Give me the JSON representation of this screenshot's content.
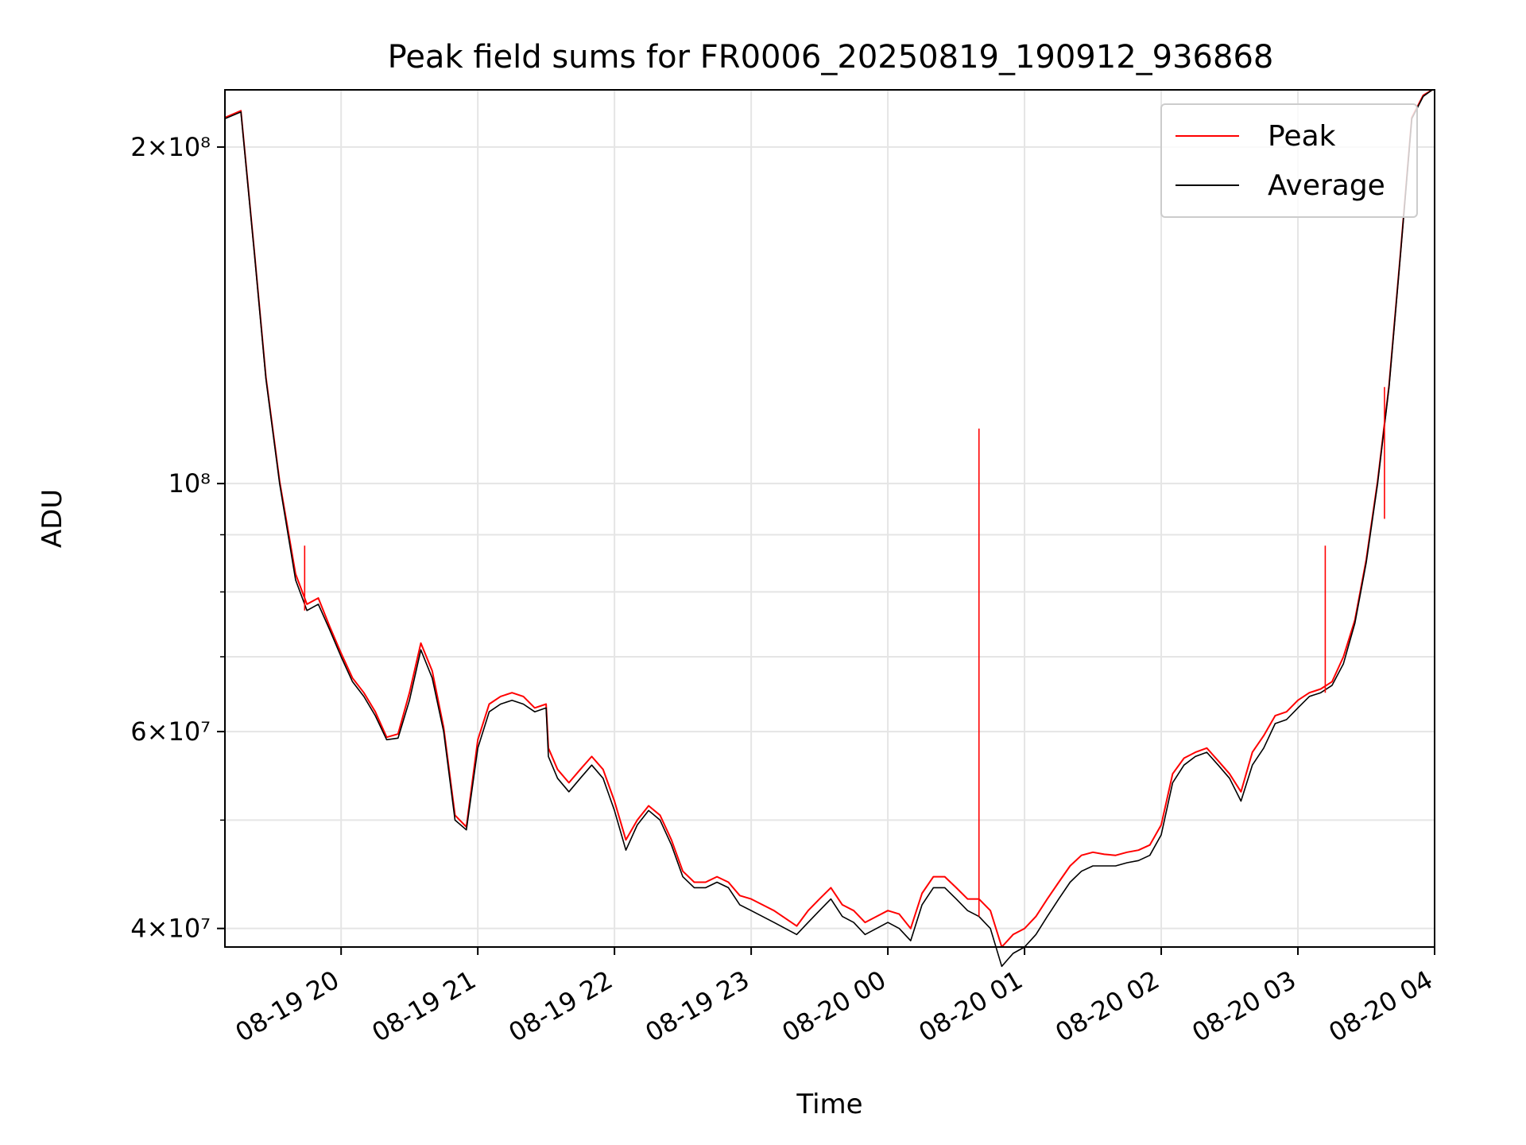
{
  "chart_data": {
    "type": "line",
    "title": "Peak field sums for FR0006_20250819_190912_936868",
    "xlabel": "Time",
    "ylabel": "ADU",
    "yscale": "log",
    "xlim": [
      "2025-08-19 19:09",
      "2025-08-20 04:00"
    ],
    "ylim": [
      38500000,
      225000000
    ],
    "x_ticks": [
      "08-19 20",
      "08-19 21",
      "08-19 22",
      "08-19 23",
      "08-20 00",
      "08-20 01",
      "08-20 02",
      "08-20 03",
      "08-20 04"
    ],
    "y_ticks": [
      {
        "value": 40000000,
        "label": "4×10⁷"
      },
      {
        "value": 60000000,
        "label": "6×10⁷"
      },
      {
        "value": 100000000,
        "label": "10⁸"
      },
      {
        "value": 200000000,
        "label": "2×10⁸"
      }
    ],
    "y_minor_ticks": [
      50000000,
      70000000,
      80000000,
      90000000
    ],
    "grid": true,
    "legend": {
      "position": "top-right",
      "entries": [
        "Peak",
        "Average"
      ]
    },
    "series": [
      {
        "name": "Average",
        "color": "#000000",
        "x": [
          "2025-08-19 19:09",
          "2025-08-19 19:16",
          "2025-08-19 19:22",
          "2025-08-19 19:27",
          "2025-08-19 19:33",
          "2025-08-19 19:40",
          "2025-08-19 19:45",
          "2025-08-19 19:50",
          "2025-08-19 19:55",
          "2025-08-19 20:00",
          "2025-08-19 20:05",
          "2025-08-19 20:10",
          "2025-08-19 20:15",
          "2025-08-19 20:20",
          "2025-08-19 20:25",
          "2025-08-19 20:30",
          "2025-08-19 20:35",
          "2025-08-19 20:40",
          "2025-08-19 20:45",
          "2025-08-19 20:50",
          "2025-08-19 20:55",
          "2025-08-19 21:00",
          "2025-08-19 21:05",
          "2025-08-19 21:10",
          "2025-08-19 21:15",
          "2025-08-19 21:20",
          "2025-08-19 21:25",
          "2025-08-19 21:30",
          "2025-08-19 21:31",
          "2025-08-19 21:35",
          "2025-08-19 21:40",
          "2025-08-19 21:45",
          "2025-08-19 21:50",
          "2025-08-19 21:55",
          "2025-08-19 22:00",
          "2025-08-19 22:05",
          "2025-08-19 22:10",
          "2025-08-19 22:15",
          "2025-08-19 22:20",
          "2025-08-19 22:25",
          "2025-08-19 22:30",
          "2025-08-19 22:35",
          "2025-08-19 22:40",
          "2025-08-19 22:45",
          "2025-08-19 22:50",
          "2025-08-19 22:55",
          "2025-08-19 23:00",
          "2025-08-19 23:10",
          "2025-08-19 23:20",
          "2025-08-19 23:25",
          "2025-08-19 23:30",
          "2025-08-19 23:35",
          "2025-08-19 23:40",
          "2025-08-19 23:45",
          "2025-08-19 23:50",
          "2025-08-19 23:55",
          "2025-08-20 00:00",
          "2025-08-20 00:05",
          "2025-08-20 00:10",
          "2025-08-20 00:15",
          "2025-08-20 00:20",
          "2025-08-20 00:25",
          "2025-08-20 00:30",
          "2025-08-20 00:35",
          "2025-08-20 00:40",
          "2025-08-20 00:45",
          "2025-08-20 00:50",
          "2025-08-20 00:55",
          "2025-08-20 01:00",
          "2025-08-20 01:05",
          "2025-08-20 01:10",
          "2025-08-20 01:15",
          "2025-08-20 01:20",
          "2025-08-20 01:25",
          "2025-08-20 01:30",
          "2025-08-20 01:35",
          "2025-08-20 01:40",
          "2025-08-20 01:45",
          "2025-08-20 01:50",
          "2025-08-20 01:55",
          "2025-08-20 02:00",
          "2025-08-20 02:05",
          "2025-08-20 02:10",
          "2025-08-20 02:15",
          "2025-08-20 02:20",
          "2025-08-20 02:25",
          "2025-08-20 02:30",
          "2025-08-20 02:35",
          "2025-08-20 02:40",
          "2025-08-20 02:45",
          "2025-08-20 02:50",
          "2025-08-20 02:55",
          "2025-08-20 03:00",
          "2025-08-20 03:05",
          "2025-08-20 03:10",
          "2025-08-20 03:15",
          "2025-08-20 03:20",
          "2025-08-20 03:25",
          "2025-08-20 03:30",
          "2025-08-20 03:35",
          "2025-08-20 03:40",
          "2025-08-20 03:45",
          "2025-08-20 03:50",
          "2025-08-20 03:55",
          "2025-08-20 03:59"
        ],
        "values": [
          212000000,
          215000000,
          160000000,
          124000000,
          100000000,
          82000000,
          77000000,
          78000000,
          74000000,
          70000000,
          66500000,
          64500000,
          62000000,
          59000000,
          59200000,
          64000000,
          71000000,
          67000000,
          60000000,
          50000000,
          49000000,
          58000000,
          62500000,
          63500000,
          64000000,
          63500000,
          62500000,
          63000000,
          57000000,
          54500000,
          53000000,
          54500000,
          56000000,
          54500000,
          51000000,
          47000000,
          49500000,
          51000000,
          50000000,
          47500000,
          44500000,
          43500000,
          43500000,
          44000000,
          43500000,
          42000000,
          41500000,
          40500000,
          39500000,
          40500000,
          41500000,
          42500000,
          41000000,
          40500000,
          39500000,
          40000000,
          40500000,
          40000000,
          39000000,
          42000000,
          43500000,
          43500000,
          42500000,
          41500000,
          41000000,
          40000000,
          37000000,
          38000000,
          38500000,
          39500000,
          41000000,
          42500000,
          44000000,
          45000000,
          45500000,
          45500000,
          45500000,
          45800000,
          46000000,
          46500000,
          48500000,
          54000000,
          56000000,
          57000000,
          57500000,
          56000000,
          54500000,
          52000000,
          56000000,
          58000000,
          61000000,
          61500000,
          63000000,
          64500000,
          65000000,
          66000000,
          69000000,
          75000000,
          85000000,
          100000000,
          122000000,
          160000000,
          212000000,
          222000000,
          225000000
        ]
      },
      {
        "name": "Peak",
        "color": "#ff0000",
        "x": [
          "2025-08-19 19:09",
          "2025-08-19 19:16",
          "2025-08-19 19:22",
          "2025-08-19 19:27",
          "2025-08-19 19:33",
          "2025-08-19 19:40",
          "2025-08-19 19:45",
          "2025-08-19 19:50",
          "2025-08-19 19:55",
          "2025-08-19 20:00",
          "2025-08-19 20:05",
          "2025-08-19 20:10",
          "2025-08-19 20:15",
          "2025-08-19 20:20",
          "2025-08-19 20:25",
          "2025-08-19 20:30",
          "2025-08-19 20:35",
          "2025-08-19 20:40",
          "2025-08-19 20:45",
          "2025-08-19 20:50",
          "2025-08-19 20:55",
          "2025-08-19 21:00",
          "2025-08-19 21:05",
          "2025-08-19 21:10",
          "2025-08-19 21:15",
          "2025-08-19 21:20",
          "2025-08-19 21:25",
          "2025-08-19 21:30",
          "2025-08-19 21:31",
          "2025-08-19 21:35",
          "2025-08-19 21:40",
          "2025-08-19 21:45",
          "2025-08-19 21:50",
          "2025-08-19 21:55",
          "2025-08-19 22:00",
          "2025-08-19 22:05",
          "2025-08-19 22:10",
          "2025-08-19 22:15",
          "2025-08-19 22:20",
          "2025-08-19 22:25",
          "2025-08-19 22:30",
          "2025-08-19 22:35",
          "2025-08-19 22:40",
          "2025-08-19 22:45",
          "2025-08-19 22:50",
          "2025-08-19 22:55",
          "2025-08-19 23:00",
          "2025-08-19 23:10",
          "2025-08-19 23:20",
          "2025-08-19 23:25",
          "2025-08-19 23:30",
          "2025-08-19 23:35",
          "2025-08-19 23:40",
          "2025-08-19 23:45",
          "2025-08-19 23:50",
          "2025-08-19 23:55",
          "2025-08-20 00:00",
          "2025-08-20 00:05",
          "2025-08-20 00:10",
          "2025-08-20 00:15",
          "2025-08-20 00:20",
          "2025-08-20 00:25",
          "2025-08-20 00:30",
          "2025-08-20 00:35",
          "2025-08-20 00:40",
          "2025-08-20 00:45",
          "2025-08-20 00:50",
          "2025-08-20 00:55",
          "2025-08-20 01:00",
          "2025-08-20 01:05",
          "2025-08-20 01:10",
          "2025-08-20 01:15",
          "2025-08-20 01:20",
          "2025-08-20 01:25",
          "2025-08-20 01:30",
          "2025-08-20 01:35",
          "2025-08-20 01:40",
          "2025-08-20 01:45",
          "2025-08-20 01:50",
          "2025-08-20 01:55",
          "2025-08-20 02:00",
          "2025-08-20 02:05",
          "2025-08-20 02:10",
          "2025-08-20 02:15",
          "2025-08-20 02:20",
          "2025-08-20 02:25",
          "2025-08-20 02:30",
          "2025-08-20 02:35",
          "2025-08-20 02:40",
          "2025-08-20 02:45",
          "2025-08-20 02:50",
          "2025-08-20 02:55",
          "2025-08-20 03:00",
          "2025-08-20 03:05",
          "2025-08-20 03:10",
          "2025-08-20 03:15",
          "2025-08-20 03:20",
          "2025-08-20 03:25",
          "2025-08-20 03:30",
          "2025-08-20 03:35",
          "2025-08-20 03:40",
          "2025-08-20 03:45",
          "2025-08-20 03:50",
          "2025-08-20 03:55",
          "2025-08-20 03:59"
        ],
        "values": [
          212500000,
          215500000,
          160500000,
          124500000,
          100500000,
          83000000,
          78000000,
          79000000,
          74500000,
          70500000,
          67000000,
          65000000,
          62500000,
          59300000,
          59700000,
          65000000,
          72000000,
          68000000,
          60500000,
          50500000,
          49300000,
          59000000,
          63500000,
          64500000,
          65000000,
          64500000,
          63000000,
          63500000,
          58000000,
          55500000,
          54000000,
          55500000,
          57000000,
          55500000,
          52000000,
          48000000,
          50000000,
          51500000,
          50500000,
          48000000,
          45000000,
          44000000,
          44000000,
          44500000,
          44000000,
          42800000,
          42500000,
          41500000,
          40200000,
          41500000,
          42500000,
          43500000,
          42000000,
          41500000,
          40500000,
          41000000,
          41500000,
          41200000,
          40000000,
          43000000,
          44500000,
          44500000,
          43500000,
          42500000,
          42500000,
          41500000,
          38500000,
          39500000,
          40000000,
          41000000,
          42500000,
          44000000,
          45500000,
          46500000,
          46800000,
          46600000,
          46500000,
          46800000,
          47000000,
          47500000,
          49500000,
          55000000,
          56800000,
          57500000,
          58000000,
          56500000,
          55000000,
          53000000,
          57500000,
          59500000,
          62000000,
          62500000,
          64000000,
          65000000,
          65500000,
          66500000,
          70000000,
          75500000,
          85500000,
          100500000,
          122500000,
          160500000,
          212500000,
          222500000,
          225000000
        ]
      }
    ],
    "annotations": [
      {
        "series": "Peak",
        "x": "2025-08-20 00:40",
        "value": 112000000,
        "note": "spike"
      },
      {
        "series": "Peak",
        "x": "2025-08-20 03:12",
        "value": 88000000,
        "note": "spike"
      },
      {
        "series": "Peak",
        "x": "2025-08-20 03:38",
        "value": 93000000,
        "note": "spike"
      },
      {
        "series": "Peak",
        "x": "2025-08-19 19:44",
        "value": 88000000,
        "note": "spike"
      }
    ]
  }
}
